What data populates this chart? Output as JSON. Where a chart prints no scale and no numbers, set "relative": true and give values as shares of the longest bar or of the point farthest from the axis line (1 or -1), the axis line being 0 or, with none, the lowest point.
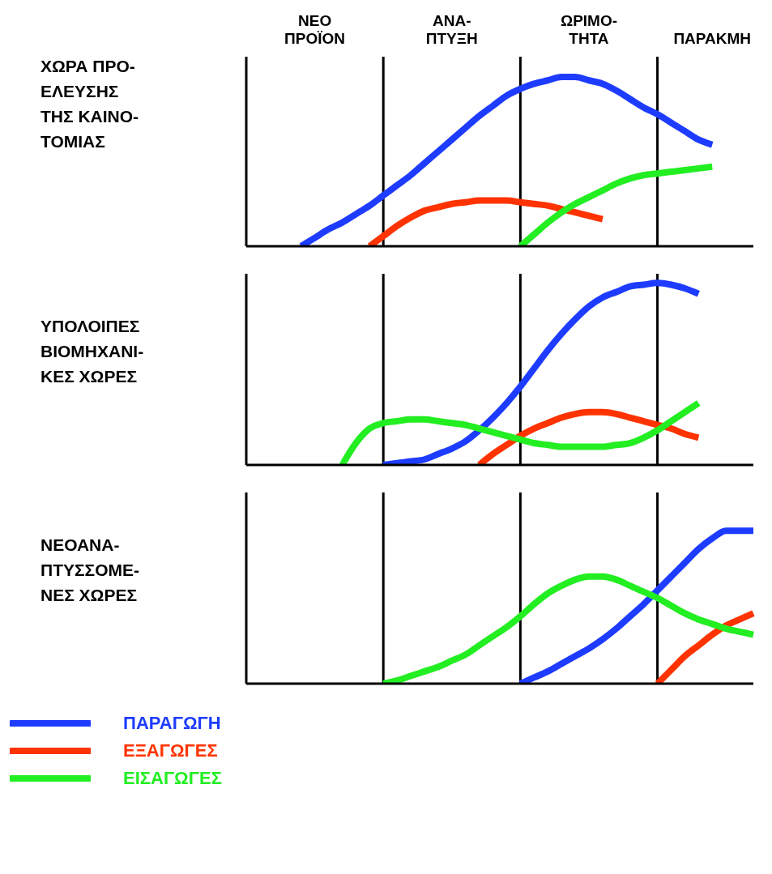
{
  "chart_data": [
    {
      "type": "line",
      "relative": true,
      "ylabel": "ΧΩΡΑ ΠΡΟ-\nΕΛΕΥΣΗΣ\nΤΗΣ ΚΑΙΝΟ-\nΤΟΜΙΑΣ",
      "categories": [
        null,
        null,
        null,
        null,
        null,
        "ΝΕΟ\nΠΡΟΪΟΝ",
        null,
        null,
        null,
        null,
        null,
        null,
        null,
        null,
        null,
        "ΑΝΑ-\nΠΤΥΞΗ",
        null,
        null,
        null,
        null,
        null,
        null,
        null,
        null,
        null,
        "ΩΡΙΜΟ-\nΤΗΤΑ",
        null,
        null,
        null,
        null,
        null,
        null,
        null,
        null,
        "ΠΑΡΑΚΜΗ",
        null,
        null,
        null
      ],
      "tick_labels": "x",
      "marker": "none",
      "line_style": "solid",
      "grid": "x",
      "series": [
        {
          "color": "#1e3cff",
          "values": [
            null,
            null,
            null,
            null,
            0,
            0.05,
            0.1,
            0.14,
            0.19,
            0.24,
            0.3,
            0.36,
            0.42,
            0.49,
            0.56,
            0.63,
            0.7,
            0.77,
            0.83,
            0.89,
            0.93,
            0.96,
            0.98,
            1,
            1,
            0.98,
            0.96,
            0.92,
            0.87,
            0.82,
            0.78,
            0.73,
            0.68,
            0.63,
            0.6,
            null,
            null,
            null
          ]
        },
        {
          "color": "#ff3300",
          "values": [
            null,
            null,
            null,
            null,
            null,
            null,
            null,
            null,
            null,
            0,
            0.06,
            0.12,
            0.17,
            0.21,
            0.23,
            0.25,
            0.26,
            0.27,
            0.27,
            0.27,
            0.26,
            0.25,
            0.24,
            0.22,
            0.2,
            0.18,
            0.16,
            null,
            null,
            null,
            null,
            null,
            null,
            null,
            null,
            null,
            null,
            null
          ]
        },
        {
          "color": "#22ee22",
          "values": [
            null,
            null,
            null,
            null,
            null,
            null,
            null,
            null,
            null,
            null,
            null,
            null,
            null,
            null,
            null,
            null,
            null,
            null,
            null,
            null,
            0,
            0.07,
            0.14,
            0.2,
            0.25,
            0.29,
            0.33,
            0.37,
            0.4,
            0.42,
            0.43,
            0.44,
            0.45,
            0.46,
            0.47,
            null,
            null,
            null
          ]
        }
      ]
    },
    {
      "type": "line",
      "relative": true,
      "ylabel": "ΥΠΟΛΟΙΠΕΣ\nΒΙΟΜΗΧΑΝΙ-\nΚΕΣ ΧΩΡΕΣ",
      "categories": [
        null,
        null,
        null,
        null,
        null,
        null,
        null,
        null,
        null,
        null,
        null,
        null,
        null,
        null,
        null,
        null,
        null,
        null,
        null,
        null,
        null,
        null,
        null,
        null,
        null,
        null,
        null,
        null,
        null,
        null,
        null,
        null,
        null,
        null,
        null,
        null,
        null,
        null
      ],
      "tick_labels": false,
      "marker": "none",
      "line_style": "solid",
      "grid": "x",
      "series": [
        {
          "color": "#1e3cff",
          "values": [
            null,
            null,
            null,
            null,
            null,
            null,
            null,
            null,
            null,
            null,
            0,
            0.01,
            0.02,
            0.03,
            0.06,
            0.09,
            0.13,
            0.19,
            0.26,
            0.34,
            0.43,
            0.53,
            0.63,
            0.72,
            0.8,
            0.87,
            0.92,
            0.95,
            0.98,
            0.99,
            1,
            0.99,
            0.97,
            0.94,
            null,
            null,
            null,
            null
          ]
        },
        {
          "color": "#ff3300",
          "values": [
            null,
            null,
            null,
            null,
            null,
            null,
            null,
            null,
            null,
            null,
            null,
            null,
            null,
            null,
            null,
            null,
            null,
            0,
            0.06,
            0.11,
            0.16,
            0.2,
            0.23,
            0.26,
            0.28,
            0.29,
            0.29,
            0.28,
            0.26,
            0.24,
            0.22,
            0.2,
            0.17,
            0.15,
            null,
            null,
            null,
            null
          ]
        },
        {
          "color": "#22ee22",
          "values": [
            null,
            null,
            null,
            null,
            null,
            null,
            null,
            0,
            0.12,
            0.2,
            0.23,
            0.24,
            0.25,
            0.25,
            0.24,
            0.23,
            0.22,
            0.2,
            0.18,
            0.16,
            0.14,
            0.12,
            0.11,
            0.1,
            0.1,
            0.1,
            0.1,
            0.11,
            0.12,
            0.15,
            0.19,
            0.24,
            0.29,
            0.34,
            null,
            null,
            null,
            null
          ]
        }
      ]
    },
    {
      "type": "line",
      "relative": true,
      "ylabel": "ΝΕΟΑΝΑ-\nΠΤΥΣΣΟΜΕ-\nΝΕΣ ΧΩΡΕΣ",
      "categories": [
        null,
        null,
        null,
        null,
        null,
        null,
        null,
        null,
        null,
        null,
        null,
        null,
        null,
        null,
        null,
        null,
        null,
        null,
        null,
        null,
        null,
        null,
        null,
        null,
        null,
        null,
        null,
        null,
        null,
        null,
        null,
        null,
        null,
        null,
        null,
        null,
        null,
        null
      ],
      "tick_labels": false,
      "marker": "none",
      "line_style": "solid",
      "legend": "bottom",
      "grid": "x",
      "series": [
        {
          "name": "ΠΑΡΑΓΩΓΗ",
          "color": "#1e3cff",
          "values": [
            null,
            null,
            null,
            null,
            null,
            null,
            null,
            null,
            null,
            null,
            null,
            null,
            null,
            null,
            null,
            null,
            null,
            null,
            null,
            null,
            0,
            0.04,
            0.08,
            0.13,
            0.18,
            0.23,
            0.29,
            0.36,
            0.44,
            0.52,
            0.61,
            0.7,
            0.79,
            0.88,
            0.95,
            1,
            1,
            1
          ]
        },
        {
          "name": "ΕΞΑΓΩΓΕΣ",
          "color": "#ff3300",
          "values": [
            null,
            null,
            null,
            null,
            null,
            null,
            null,
            null,
            null,
            null,
            null,
            null,
            null,
            null,
            null,
            null,
            null,
            null,
            null,
            null,
            null,
            null,
            null,
            null,
            null,
            null,
            null,
            null,
            null,
            null,
            0,
            0.09,
            0.18,
            0.25,
            0.32,
            0.38,
            0.42,
            0.46
          ]
        },
        {
          "name": "ΕΙΣΑΓΩΓΕΣ",
          "color": "#22ee22",
          "values": [
            null,
            null,
            null,
            null,
            null,
            null,
            null,
            null,
            null,
            null,
            0,
            0.02,
            0.05,
            0.08,
            0.11,
            0.15,
            0.19,
            0.25,
            0.31,
            0.37,
            0.44,
            0.52,
            0.59,
            0.64,
            0.68,
            0.7,
            0.7,
            0.68,
            0.64,
            0.6,
            0.56,
            0.51,
            0.46,
            0.42,
            0.39,
            0.36,
            0.34,
            0.32
          ]
        }
      ]
    }
  ]
}
